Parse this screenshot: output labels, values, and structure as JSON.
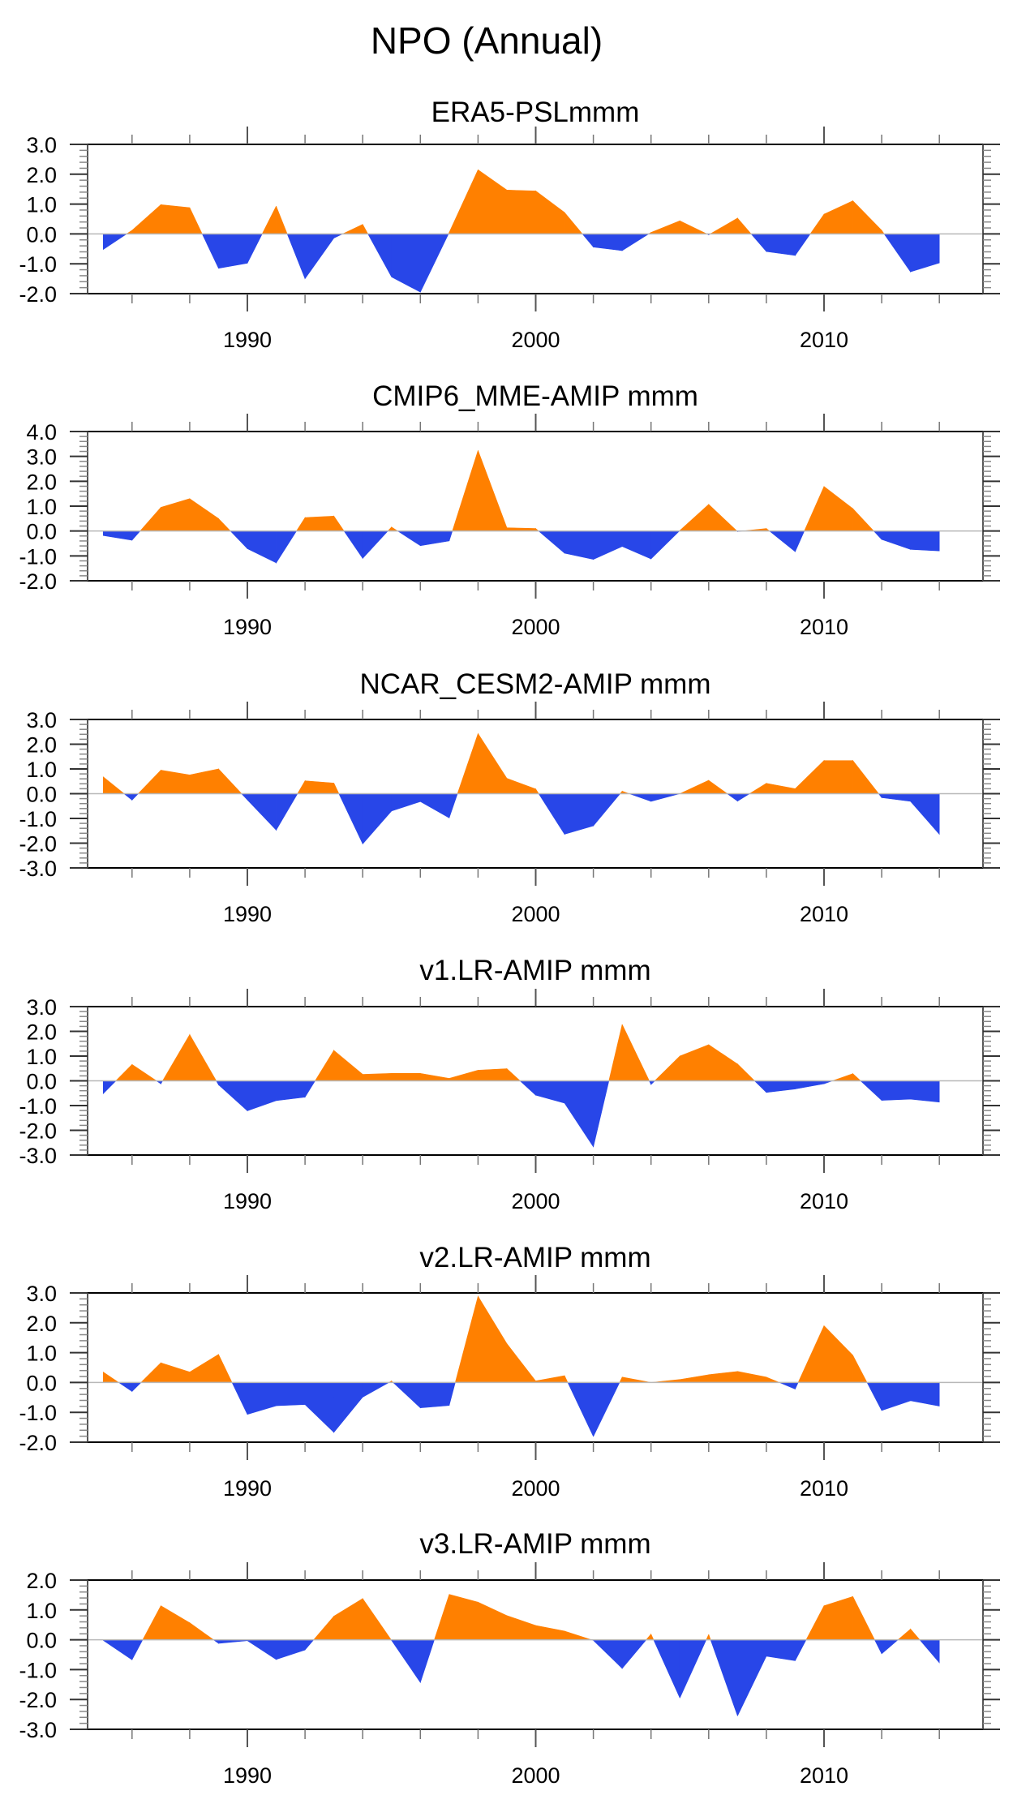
{
  "figure": {
    "title": "NPO (Annual)"
  },
  "chart_data": [
    {
      "type": "area",
      "title": "ERA5-PSLmmm",
      "xlabel": "",
      "ylabel": "",
      "x": [
        1985,
        1986,
        1987,
        1988,
        1989,
        1990,
        1991,
        1992,
        1993,
        1994,
        1995,
        1996,
        1997,
        1998,
        1999,
        2000,
        2001,
        2002,
        2003,
        2004,
        2005,
        2006,
        2007,
        2008,
        2009,
        2010,
        2011,
        2012,
        2013,
        2014
      ],
      "values": [
        -0.52,
        0.12,
        0.98,
        0.88,
        -1.15,
        -0.98,
        0.93,
        -1.5,
        -0.14,
        0.32,
        -1.44,
        -1.95,
        0.05,
        2.15,
        1.47,
        1.44,
        0.72,
        -0.44,
        -0.56,
        0.05,
        0.44,
        -0.03,
        0.53,
        -0.59,
        -0.72,
        0.66,
        1.11,
        0.12,
        -1.27,
        -0.97
      ],
      "ylim": [
        -2.0,
        3.0
      ],
      "yticks": [
        "3.0",
        "2.0",
        "1.0",
        "0.0",
        "-1.0",
        "-2.0"
      ],
      "xlim": [
        1983.5,
        2015.5
      ],
      "xtick_labels": [
        "1990",
        "2000",
        "2010"
      ],
      "positive_color": "#FF8000",
      "negative_color": "#2846E8",
      "grid": false
    },
    {
      "type": "area",
      "title": "CMIP6_MME-AMIP  mmm",
      "xlabel": "",
      "ylabel": "",
      "x": [
        1985,
        1986,
        1987,
        1988,
        1989,
        1990,
        1991,
        1992,
        1993,
        1994,
        1995,
        1996,
        1997,
        1998,
        1999,
        2000,
        2001,
        2002,
        2003,
        2004,
        2005,
        2006,
        2007,
        2008,
        2009,
        2010,
        2011,
        2012,
        2013,
        2014
      ],
      "values": [
        -0.18,
        -0.37,
        0.95,
        1.3,
        0.5,
        -0.71,
        -1.28,
        0.54,
        0.6,
        -1.1,
        0.16,
        -0.59,
        -0.4,
        3.24,
        0.13,
        0.1,
        -0.89,
        -1.14,
        -0.62,
        -1.12,
        0.02,
        1.07,
        -0.02,
        0.1,
        -0.83,
        1.79,
        0.9,
        -0.34,
        -0.74,
        -0.8
      ],
      "ylim": [
        -2.0,
        4.0
      ],
      "yticks": [
        "4.0",
        "3.0",
        "2.0",
        "1.0",
        "0.0",
        "-1.0",
        "-2.0"
      ],
      "xlim": [
        1983.5,
        2015.5
      ],
      "xtick_labels": [
        "1990",
        "2000",
        "2010"
      ],
      "positive_color": "#FF8000",
      "negative_color": "#2846E8",
      "grid": false
    },
    {
      "type": "area",
      "title": "NCAR_CESM2-AMIP  mmm",
      "xlabel": "",
      "ylabel": "",
      "x": [
        1985,
        1986,
        1987,
        1988,
        1989,
        1990,
        1991,
        1992,
        1993,
        1994,
        1995,
        1996,
        1997,
        1998,
        1999,
        2000,
        2001,
        2002,
        2003,
        2004,
        2005,
        2006,
        2007,
        2008,
        2009,
        2010,
        2011,
        2012,
        2013,
        2014
      ],
      "values": [
        0.68,
        -0.26,
        0.95,
        0.76,
        1.0,
        -0.25,
        -1.47,
        0.52,
        0.43,
        -2.03,
        -0.7,
        -0.32,
        -0.98,
        2.43,
        0.62,
        0.19,
        -1.64,
        -1.3,
        0.1,
        -0.31,
        0.0,
        0.54,
        -0.3,
        0.42,
        0.2,
        1.34,
        1.34,
        -0.16,
        -0.31,
        -1.64
      ],
      "ylim": [
        -3.0,
        3.0
      ],
      "yticks": [
        "3.0",
        "2.0",
        "1.0",
        "0.0",
        "-1.0",
        "-2.0",
        "-3.0"
      ],
      "xlim": [
        1983.5,
        2015.5
      ],
      "xtick_labels": [
        "1990",
        "2000",
        "2010"
      ],
      "positive_color": "#FF8000",
      "negative_color": "#2846E8",
      "grid": false
    },
    {
      "type": "area",
      "title": "v1.LR-AMIP  mmm",
      "xlabel": "",
      "ylabel": "",
      "x": [
        1985,
        1986,
        1987,
        1988,
        1989,
        1990,
        1991,
        1992,
        1993,
        1994,
        1995,
        1996,
        1997,
        1998,
        1999,
        2000,
        2001,
        2002,
        2003,
        2004,
        2005,
        2006,
        2007,
        2008,
        2009,
        2010,
        2011,
        2012,
        2013,
        2014
      ],
      "values": [
        -0.52,
        0.66,
        -0.12,
        1.87,
        -0.16,
        -1.21,
        -0.8,
        -0.66,
        1.23,
        0.26,
        0.3,
        0.3,
        0.1,
        0.43,
        0.49,
        -0.58,
        -0.9,
        -2.67,
        2.28,
        -0.15,
        1.0,
        1.46,
        0.68,
        -0.47,
        -0.33,
        -0.12,
        0.29,
        -0.79,
        -0.74,
        -0.86
      ],
      "ylim": [
        -3.0,
        3.0
      ],
      "yticks": [
        "3.0",
        "2.0",
        "1.0",
        "0.0",
        "-1.0",
        "-2.0",
        "-3.0"
      ],
      "xlim": [
        1983.5,
        2015.5
      ],
      "xtick_labels": [
        "1990",
        "2000",
        "2010"
      ],
      "positive_color": "#FF8000",
      "negative_color": "#2846E8",
      "grid": false
    },
    {
      "type": "area",
      "title": "v2.LR-AMIP  mmm",
      "xlabel": "",
      "ylabel": "",
      "x": [
        1985,
        1986,
        1987,
        1988,
        1989,
        1990,
        1991,
        1992,
        1993,
        1994,
        1995,
        1996,
        1997,
        1998,
        1999,
        2000,
        2001,
        2002,
        2003,
        2004,
        2005,
        2006,
        2007,
        2008,
        2009,
        2010,
        2011,
        2012,
        2013,
        2014
      ],
      "values": [
        0.35,
        -0.3,
        0.66,
        0.35,
        0.94,
        -1.07,
        -0.78,
        -0.74,
        -1.67,
        -0.49,
        0.05,
        -0.85,
        -0.77,
        2.89,
        1.3,
        0.05,
        0.23,
        -1.81,
        0.18,
        0.0,
        0.1,
        0.26,
        0.37,
        0.18,
        -0.22,
        1.9,
        0.91,
        -0.94,
        -0.61,
        -0.79
      ],
      "ylim": [
        -2.0,
        3.0
      ],
      "yticks": [
        "3.0",
        "2.0",
        "1.0",
        "0.0",
        "-1.0",
        "-2.0"
      ],
      "xlim": [
        1983.5,
        2015.5
      ],
      "xtick_labels": [
        "1990",
        "2000",
        "2010"
      ],
      "positive_color": "#FF8000",
      "negative_color": "#2846E8",
      "grid": false
    },
    {
      "type": "area",
      "title": "v3.LR-AMIP  mmm",
      "xlabel": "",
      "ylabel": "",
      "x": [
        1985,
        1986,
        1987,
        1988,
        1989,
        1990,
        1991,
        1992,
        1993,
        1994,
        1995,
        1996,
        1997,
        1998,
        1999,
        2000,
        2001,
        2002,
        2003,
        2004,
        2005,
        2006,
        2007,
        2008,
        2009,
        2010,
        2011,
        2012,
        2013,
        2014
      ],
      "values": [
        -0.02,
        -0.67,
        1.14,
        0.57,
        -0.12,
        -0.03,
        -0.66,
        -0.34,
        0.79,
        1.38,
        -0.02,
        -1.43,
        1.52,
        1.26,
        0.81,
        0.48,
        0.29,
        -0.02,
        -0.96,
        0.19,
        -1.95,
        0.18,
        -2.55,
        -0.55,
        -0.7,
        1.14,
        1.45,
        -0.47,
        0.36,
        -0.77
      ],
      "ylim": [
        -3.0,
        2.0
      ],
      "yticks": [
        "2.0",
        "1.0",
        "0.0",
        "-1.0",
        "-2.0",
        "-3.0"
      ],
      "xlim": [
        1983.5,
        2015.5
      ],
      "xtick_labels": [
        "1990",
        "2000",
        "2010"
      ],
      "positive_color": "#FF8000",
      "negative_color": "#2846E8",
      "grid": false
    }
  ]
}
